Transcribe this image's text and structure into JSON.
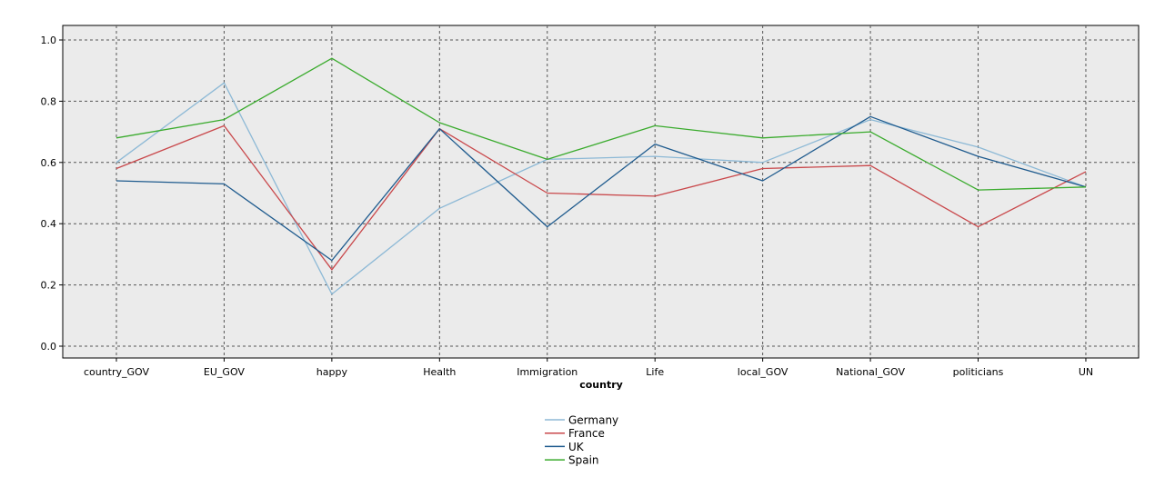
{
  "chart_data": {
    "type": "line",
    "xlabel": "country",
    "ylabel": "",
    "ylim": [
      0,
      1.0
    ],
    "yticks": [
      "0.0",
      "0.2",
      "0.4",
      "0.6",
      "0.8",
      "1.0"
    ],
    "grid": true,
    "legend_position": "bottom-center",
    "categories": [
      "country_GOV",
      "EU_GOV",
      "happy",
      "Health",
      "Immigration",
      "Life",
      "local_GOV",
      "National_GOV",
      "politicians",
      "UN"
    ],
    "series": [
      {
        "name": "Germany",
        "color": "#8db9d6",
        "values": [
          0.6,
          0.86,
          0.17,
          0.45,
          0.61,
          0.62,
          0.6,
          0.74,
          0.65,
          0.52
        ]
      },
      {
        "name": "France",
        "color": "#c9484b",
        "values": [
          0.58,
          0.72,
          0.25,
          0.71,
          0.5,
          0.49,
          0.58,
          0.59,
          0.39,
          0.57
        ]
      },
      {
        "name": "UK",
        "color": "#1f5b8e",
        "values": [
          0.54,
          0.53,
          0.28,
          0.71,
          0.39,
          0.66,
          0.54,
          0.75,
          0.62,
          0.52
        ]
      },
      {
        "name": "Spain",
        "color": "#3aab2d",
        "values": [
          0.68,
          0.74,
          0.94,
          0.73,
          0.61,
          0.72,
          0.68,
          0.7,
          0.51,
          0.52
        ]
      }
    ]
  }
}
